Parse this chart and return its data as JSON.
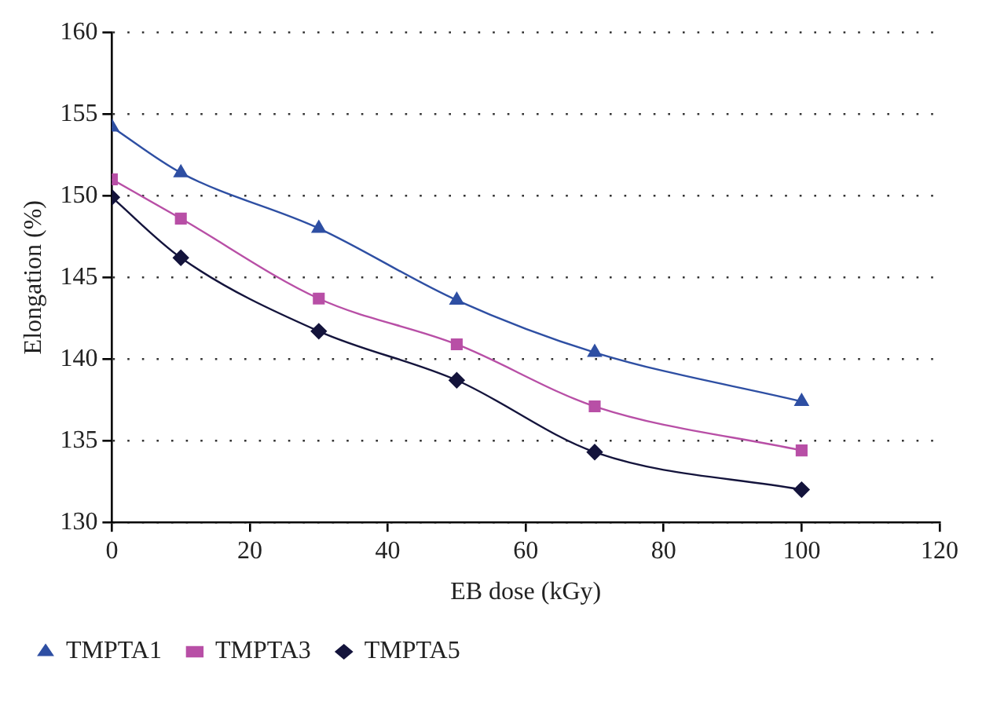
{
  "chart_data": {
    "type": "line",
    "xlabel": "EB dose (kGy)",
    "ylabel": "Elongation (%)",
    "x": [
      0,
      10,
      30,
      50,
      70,
      100
    ],
    "series": [
      {
        "name": "TMPTA1",
        "color": "#2e4fa3",
        "marker": "triangle",
        "values": [
          154.2,
          151.4,
          148.0,
          143.6,
          140.4,
          137.4
        ]
      },
      {
        "name": "TMPTA3",
        "color": "#b84fa6",
        "marker": "square",
        "values": [
          151.0,
          148.6,
          143.7,
          140.9,
          137.1,
          134.4
        ]
      },
      {
        "name": "TMPTA5",
        "color": "#14143c",
        "marker": "diamond",
        "values": [
          149.9,
          146.2,
          141.7,
          138.7,
          134.3,
          132.0
        ]
      }
    ],
    "xlim": [
      0,
      120
    ],
    "xticks": [
      0,
      20,
      40,
      60,
      80,
      100,
      120
    ],
    "ylim": [
      130,
      160
    ],
    "yticks": [
      130,
      135,
      140,
      145,
      150,
      155,
      160
    ],
    "grid": "y",
    "line_style": "solid",
    "legend": "bottom left"
  }
}
